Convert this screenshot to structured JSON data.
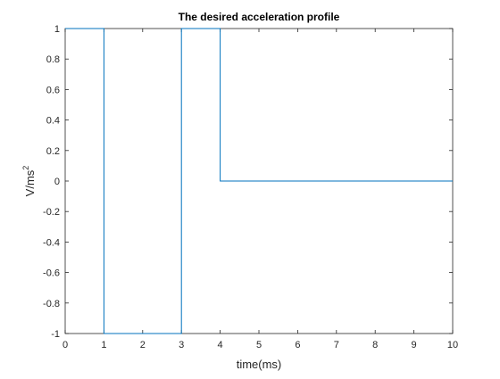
{
  "chart_data": {
    "type": "line",
    "title": "The desired acceleration profile",
    "xlabel": "time(ms)",
    "ylabel": "V/ms",
    "ylabel_superscript": "2",
    "xlim": [
      0,
      10
    ],
    "ylim": [
      -1,
      1
    ],
    "xticks": [
      "0",
      "1",
      "2",
      "3",
      "4",
      "5",
      "6",
      "7",
      "8",
      "9",
      "10"
    ],
    "yticks": [
      "-1",
      "-0.8",
      "-0.6",
      "-0.4",
      "-0.2",
      "0",
      "0.2",
      "0.4",
      "0.6",
      "0.8",
      "1"
    ],
    "grid": false,
    "series": [
      {
        "color": "#0072BD",
        "x": [
          0,
          1,
          1,
          3,
          3,
          4,
          4,
          10
        ],
        "y": [
          1,
          1,
          -1,
          -1,
          1,
          1,
          0,
          0
        ]
      }
    ]
  }
}
